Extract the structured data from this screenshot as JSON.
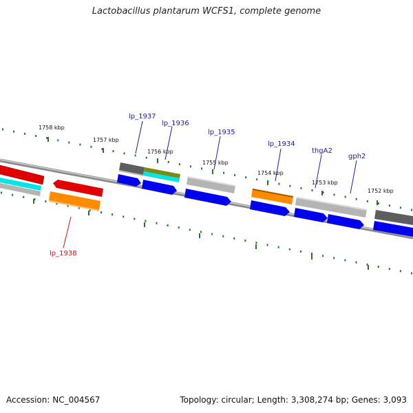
{
  "header": {
    "title": "Lactobacillus plantarum WCFS1, complete genome"
  },
  "footer": {
    "accession": "Accession: NC_004567",
    "topology": "Topology: circular; Length: 3,308,274 bp; Genes: 3,093"
  },
  "colors": {
    "backbone": "#7a7a7a",
    "tick": "#1f7a1f",
    "label_blue": "#1a1aa6",
    "label_red": "#cc1111"
  },
  "ticks": [
    {
      "label": "1758 kbp"
    },
    {
      "label": "1757 kbp"
    },
    {
      "label": "1756 kbp"
    },
    {
      "label": "1755 kbp"
    },
    {
      "label": "1754 kbp"
    },
    {
      "label": "1753 kbp"
    },
    {
      "label": "1752 kbp"
    }
  ],
  "gene_labels": [
    {
      "text": "lp_1937",
      "color": "#1a1aa6"
    },
    {
      "text": "lp_1936",
      "color": "#1a1aa6"
    },
    {
      "text": "lp_1935",
      "color": "#1a1aa6"
    },
    {
      "text": "lp_1934",
      "color": "#1a1aa6"
    },
    {
      "text": "thgA2",
      "color": "#1a1aa6"
    },
    {
      "text": "gph2",
      "color": "#1a1aa6"
    },
    {
      "text": "lp_1938",
      "color": "#cc1111"
    }
  ],
  "feature_colors": {
    "red": "#e00000",
    "orange": "#ff8c00",
    "blue": "#0000ee",
    "cyan": "#00e5e5",
    "gray_dark": "#5e5e5e",
    "gray_light": "#b4b4b4",
    "olive": "#7a8a14"
  }
}
